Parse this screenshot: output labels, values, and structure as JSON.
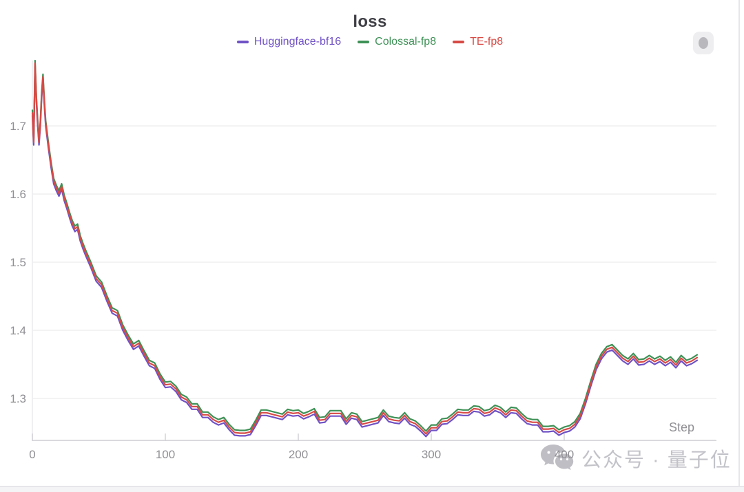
{
  "window": {
    "card_background": "#ffffff",
    "outer_background": "#f4f4f6",
    "border_color": "#e6e6ea"
  },
  "icons": {
    "watermark_icon": "wechat-logo-icon",
    "top_right_icon": "scroll-indicator-dot"
  },
  "watermark": {
    "text": "公众号 · 量子位"
  },
  "chart_data": {
    "type": "line",
    "title": "loss",
    "xlabel": "Step",
    "ylabel": "",
    "grid": "horizontal-only",
    "legend_position": "top-center",
    "xlim": [
      0,
      515
    ],
    "ylim": [
      1.238,
      1.8
    ],
    "x_ticks": [
      0,
      100,
      200,
      300,
      400
    ],
    "x_tick_labels": [
      "0",
      "100",
      "200",
      "300",
      "400"
    ],
    "y_ticks": [
      1.7,
      1.6,
      1.5,
      1.4,
      1.3
    ],
    "y_tick_labels": [
      "1.7",
      "1.6",
      "1.5",
      "1.4",
      "1.3"
    ],
    "axis_colors": {
      "grid": "#efeff1",
      "axis_line": "#d9d9de",
      "tick": "#d2d2d7",
      "label": "#8f8f94"
    },
    "x": [
      0,
      1,
      2,
      3,
      4,
      5,
      6,
      7,
      8,
      9,
      10,
      12,
      14,
      16,
      18,
      20,
      22,
      24,
      26,
      28,
      30,
      32,
      34,
      36,
      38,
      40,
      44,
      48,
      52,
      56,
      60,
      64,
      68,
      72,
      76,
      80,
      84,
      88,
      92,
      96,
      100,
      104,
      108,
      112,
      116,
      120,
      124,
      128,
      132,
      136,
      140,
      144,
      148,
      152,
      156,
      160,
      164,
      168,
      172,
      176,
      180,
      184,
      188,
      192,
      196,
      200,
      204,
      208,
      212,
      216,
      220,
      224,
      228,
      232,
      236,
      240,
      244,
      248,
      252,
      256,
      260,
      264,
      268,
      272,
      276,
      280,
      284,
      288,
      292,
      296,
      300,
      304,
      308,
      312,
      316,
      320,
      324,
      328,
      332,
      336,
      340,
      344,
      348,
      352,
      356,
      360,
      364,
      368,
      372,
      376,
      380,
      384,
      388,
      392,
      396,
      400,
      404,
      408,
      412,
      416,
      420,
      424,
      428,
      432,
      436,
      440,
      444,
      448,
      452,
      456,
      460,
      464,
      468,
      472,
      476,
      480,
      484,
      488,
      492,
      496,
      500
    ],
    "series": [
      {
        "name": "Huggingface-bf16",
        "color": "#7052c5",
        "values": [
          1.715,
          1.672,
          1.788,
          1.735,
          1.7,
          1.672,
          1.7,
          1.742,
          1.768,
          1.73,
          1.7,
          1.668,
          1.64,
          1.615,
          1.605,
          1.597,
          1.607,
          1.59,
          1.578,
          1.565,
          1.553,
          1.545,
          1.548,
          1.531,
          1.52,
          1.51,
          1.492,
          1.472,
          1.463,
          1.443,
          1.425,
          1.421,
          1.4,
          1.385,
          1.372,
          1.377,
          1.362,
          1.348,
          1.344,
          1.328,
          1.316,
          1.317,
          1.31,
          1.298,
          1.294,
          1.284,
          1.284,
          1.272,
          1.272,
          1.265,
          1.261,
          1.264,
          1.254,
          1.246,
          1.245,
          1.245,
          1.247,
          1.26,
          1.275,
          1.275,
          1.273,
          1.271,
          1.269,
          1.276,
          1.274,
          1.275,
          1.27,
          1.273,
          1.277,
          1.264,
          1.265,
          1.274,
          1.274,
          1.274,
          1.262,
          1.271,
          1.269,
          1.258,
          1.26,
          1.262,
          1.264,
          1.275,
          1.266,
          1.264,
          1.263,
          1.271,
          1.262,
          1.259,
          1.252,
          1.244,
          1.253,
          1.253,
          1.262,
          1.263,
          1.269,
          1.276,
          1.275,
          1.275,
          1.281,
          1.28,
          1.274,
          1.276,
          1.282,
          1.279,
          1.272,
          1.279,
          1.278,
          1.27,
          1.263,
          1.261,
          1.261,
          1.251,
          1.251,
          1.252,
          1.246,
          1.25,
          1.252,
          1.258,
          1.27,
          1.292,
          1.318,
          1.342,
          1.358,
          1.368,
          1.371,
          1.363,
          1.355,
          1.35,
          1.358,
          1.349,
          1.35,
          1.355,
          1.35,
          1.354,
          1.348,
          1.353,
          1.345,
          1.355,
          1.348,
          1.351,
          1.356
        ]
      },
      {
        "name": "Colossal-fp8",
        "color": "#3e9156",
        "values": [
          1.723,
          1.68,
          1.796,
          1.743,
          1.708,
          1.68,
          1.708,
          1.75,
          1.776,
          1.738,
          1.708,
          1.676,
          1.648,
          1.623,
          1.613,
          1.605,
          1.615,
          1.598,
          1.586,
          1.573,
          1.561,
          1.553,
          1.556,
          1.539,
          1.528,
          1.518,
          1.5,
          1.48,
          1.471,
          1.451,
          1.433,
          1.429,
          1.408,
          1.393,
          1.38,
          1.385,
          1.37,
          1.356,
          1.352,
          1.336,
          1.324,
          1.325,
          1.318,
          1.306,
          1.302,
          1.292,
          1.292,
          1.28,
          1.28,
          1.273,
          1.269,
          1.272,
          1.262,
          1.254,
          1.253,
          1.253,
          1.255,
          1.268,
          1.283,
          1.283,
          1.281,
          1.279,
          1.277,
          1.284,
          1.282,
          1.283,
          1.278,
          1.281,
          1.285,
          1.272,
          1.273,
          1.282,
          1.282,
          1.282,
          1.27,
          1.279,
          1.277,
          1.266,
          1.268,
          1.27,
          1.272,
          1.283,
          1.274,
          1.272,
          1.271,
          1.279,
          1.27,
          1.267,
          1.26,
          1.252,
          1.261,
          1.261,
          1.27,
          1.271,
          1.277,
          1.284,
          1.283,
          1.283,
          1.289,
          1.288,
          1.282,
          1.284,
          1.29,
          1.287,
          1.28,
          1.287,
          1.286,
          1.278,
          1.271,
          1.269,
          1.269,
          1.259,
          1.259,
          1.26,
          1.254,
          1.258,
          1.26,
          1.266,
          1.278,
          1.3,
          1.326,
          1.35,
          1.366,
          1.376,
          1.379,
          1.371,
          1.363,
          1.358,
          1.366,
          1.357,
          1.358,
          1.363,
          1.358,
          1.362,
          1.356,
          1.361,
          1.353,
          1.363,
          1.356,
          1.359,
          1.364
        ]
      },
      {
        "name": "TE-fp8",
        "color": "#d84a45",
        "values": [
          1.719,
          1.676,
          1.792,
          1.739,
          1.704,
          1.676,
          1.704,
          1.746,
          1.772,
          1.734,
          1.704,
          1.672,
          1.644,
          1.619,
          1.609,
          1.601,
          1.611,
          1.594,
          1.582,
          1.569,
          1.557,
          1.549,
          1.552,
          1.535,
          1.524,
          1.514,
          1.496,
          1.476,
          1.467,
          1.447,
          1.429,
          1.425,
          1.404,
          1.389,
          1.376,
          1.381,
          1.366,
          1.352,
          1.348,
          1.332,
          1.32,
          1.321,
          1.314,
          1.302,
          1.298,
          1.288,
          1.288,
          1.276,
          1.276,
          1.269,
          1.265,
          1.268,
          1.258,
          1.25,
          1.249,
          1.249,
          1.251,
          1.264,
          1.279,
          1.279,
          1.277,
          1.275,
          1.273,
          1.28,
          1.278,
          1.279,
          1.274,
          1.277,
          1.281,
          1.268,
          1.269,
          1.278,
          1.278,
          1.278,
          1.266,
          1.275,
          1.273,
          1.262,
          1.264,
          1.266,
          1.268,
          1.279,
          1.27,
          1.268,
          1.267,
          1.275,
          1.266,
          1.263,
          1.256,
          1.248,
          1.257,
          1.257,
          1.266,
          1.267,
          1.273,
          1.28,
          1.279,
          1.279,
          1.285,
          1.284,
          1.278,
          1.28,
          1.286,
          1.283,
          1.276,
          1.283,
          1.282,
          1.274,
          1.267,
          1.265,
          1.265,
          1.255,
          1.255,
          1.256,
          1.25,
          1.254,
          1.256,
          1.262,
          1.274,
          1.296,
          1.322,
          1.346,
          1.362,
          1.372,
          1.375,
          1.367,
          1.359,
          1.354,
          1.362,
          1.353,
          1.354,
          1.359,
          1.354,
          1.358,
          1.352,
          1.357,
          1.349,
          1.359,
          1.352,
          1.355,
          1.36
        ]
      }
    ]
  }
}
